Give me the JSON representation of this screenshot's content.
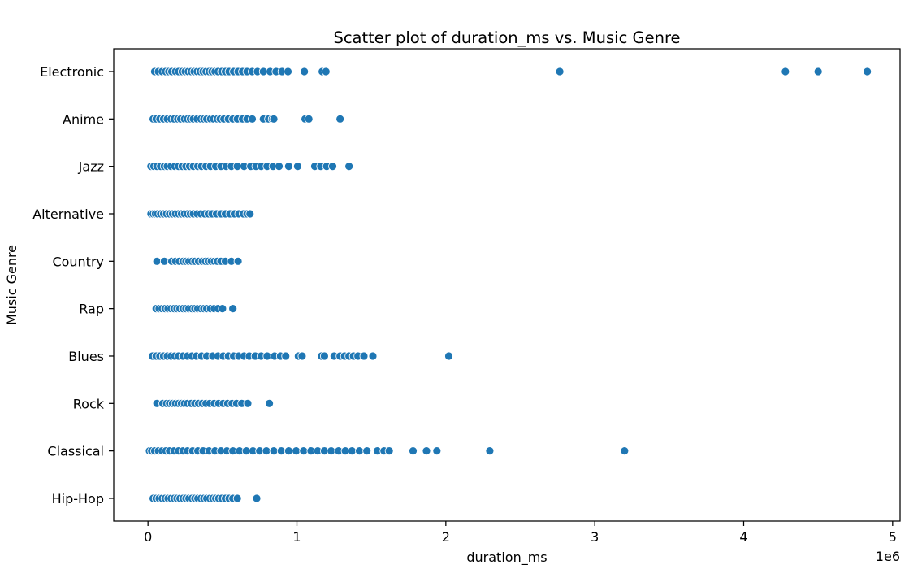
{
  "chart_data": {
    "type": "scatter",
    "title": "Scatter plot of duration_ms vs. Music Genre",
    "xlabel": "duration_ms",
    "ylabel": "Music Genre",
    "x_offset_text": "1e6",
    "x_scale_factor": 1000000,
    "xlim": [
      -230000,
      5050000
    ],
    "xticks": [
      0,
      1000000,
      2000000,
      3000000,
      4000000,
      5000000
    ],
    "xtick_labels": [
      "0",
      "1",
      "2",
      "3",
      "4",
      "5"
    ],
    "categories": [
      "Electronic",
      "Anime",
      "Jazz",
      "Alternative",
      "Country",
      "Rap",
      "Blues",
      "Rock",
      "Classical",
      "Hip-Hop"
    ],
    "grid": false,
    "legend": "none",
    "marker_color": "#1f77b4",
    "marker_edge_color": "#ffffff",
    "series": [
      {
        "category": "Electronic",
        "x": [
          45000,
          70000,
          95000,
          118000,
          140000,
          160000,
          185000,
          205000,
          230000,
          250000,
          270000,
          290000,
          310000,
          330000,
          350000,
          370000,
          390000,
          410000,
          430000,
          450000,
          470000,
          495000,
          520000,
          545000,
          575000,
          605000,
          635000,
          665000,
          700000,
          735000,
          775000,
          820000,
          860000,
          900000,
          940000,
          1050000,
          1170000,
          1195000,
          2765000,
          4280000,
          4500000,
          4830000
        ]
      },
      {
        "category": "Anime",
        "x": [
          35000,
          55000,
          80000,
          105000,
          130000,
          155000,
          175000,
          200000,
          220000,
          245000,
          265000,
          285000,
          305000,
          330000,
          355000,
          375000,
          395000,
          420000,
          440000,
          465000,
          485000,
          510000,
          540000,
          570000,
          600000,
          635000,
          665000,
          700000,
          775000,
          810000,
          835000,
          845000,
          1055000,
          1080000,
          1290000
        ]
      },
      {
        "category": "Jazz",
        "x": [
          20000,
          40000,
          60000,
          85000,
          110000,
          130000,
          155000,
          180000,
          205000,
          230000,
          255000,
          280000,
          305000,
          335000,
          360000,
          390000,
          420000,
          455000,
          490000,
          525000,
          560000,
          600000,
          645000,
          690000,
          725000,
          760000,
          800000,
          840000,
          880000,
          945000,
          1005000,
          1120000,
          1160000,
          1200000,
          1240000,
          1350000
        ]
      },
      {
        "category": "Alternative",
        "x": [
          20000,
          35000,
          50000,
          65000,
          85000,
          105000,
          125000,
          145000,
          165000,
          185000,
          205000,
          225000,
          245000,
          265000,
          285000,
          305000,
          330000,
          355000,
          380000,
          405000,
          430000,
          460000,
          490000,
          520000,
          550000,
          580000,
          610000,
          640000,
          665000,
          685000
        ]
      },
      {
        "category": "Country",
        "x": [
          60000,
          110000,
          160000,
          185000,
          210000,
          235000,
          255000,
          275000,
          295000,
          315000,
          340000,
          365000,
          385000,
          405000,
          425000,
          445000,
          465000,
          490000,
          520000,
          560000,
          605000
        ]
      },
      {
        "category": "Rap",
        "x": [
          55000,
          75000,
          95000,
          115000,
          135000,
          155000,
          175000,
          195000,
          215000,
          235000,
          255000,
          275000,
          295000,
          315000,
          335000,
          355000,
          375000,
          395000,
          420000,
          445000,
          470000,
          500000,
          570000
        ]
      },
      {
        "category": "Blues",
        "x": [
          30000,
          55000,
          80000,
          105000,
          130000,
          155000,
          180000,
          205000,
          235000,
          265000,
          295000,
          325000,
          360000,
          395000,
          435000,
          470000,
          505000,
          540000,
          575000,
          610000,
          645000,
          680000,
          720000,
          760000,
          800000,
          850000,
          890000,
          925000,
          1010000,
          1035000,
          1165000,
          1185000,
          1250000,
          1290000,
          1320000,
          1350000,
          1380000,
          1410000,
          1450000,
          1510000,
          2020000
        ]
      },
      {
        "category": "Rock",
        "x": [
          60000,
          100000,
          125000,
          145000,
          165000,
          185000,
          205000,
          225000,
          245000,
          265000,
          290000,
          315000,
          340000,
          365000,
          390000,
          415000,
          445000,
          475000,
          505000,
          535000,
          565000,
          595000,
          630000,
          670000,
          815000
        ]
      },
      {
        "category": "Classical",
        "x": [
          10000,
          25000,
          45000,
          70000,
          95000,
          120000,
          145000,
          175000,
          205000,
          235000,
          265000,
          300000,
          335000,
          370000,
          410000,
          450000,
          490000,
          530000,
          570000,
          615000,
          660000,
          705000,
          750000,
          795000,
          845000,
          895000,
          945000,
          995000,
          1045000,
          1095000,
          1140000,
          1185000,
          1230000,
          1280000,
          1325000,
          1370000,
          1420000,
          1470000,
          1540000,
          1585000,
          1620000,
          1780000,
          1870000,
          1940000,
          2295000,
          3200000
        ]
      },
      {
        "category": "Hip-Hop",
        "x": [
          35000,
          55000,
          75000,
          95000,
          115000,
          135000,
          155000,
          175000,
          195000,
          215000,
          235000,
          255000,
          275000,
          295000,
          315000,
          335000,
          355000,
          375000,
          395000,
          415000,
          435000,
          455000,
          475000,
          495000,
          520000,
          545000,
          570000,
          600000,
          730000
        ]
      }
    ]
  }
}
